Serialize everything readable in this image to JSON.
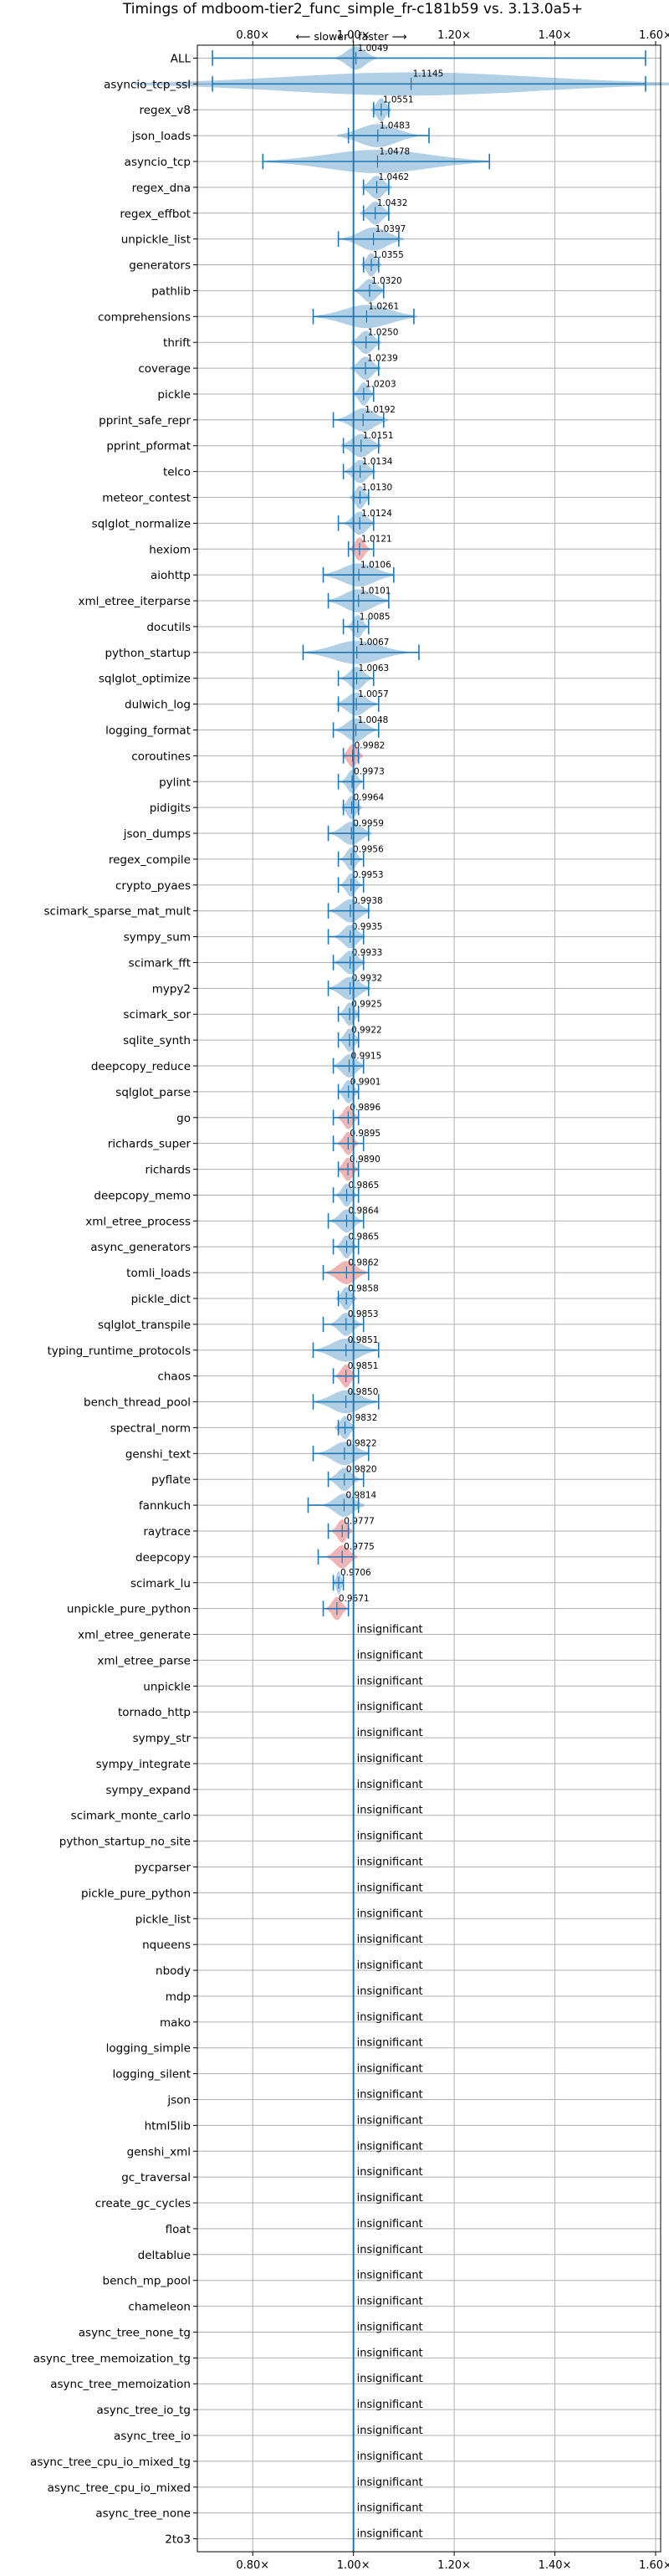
{
  "chart_data": {
    "type": "violin",
    "title": "Timings of mdboom-tier2_func_simple_fr-c181b59 vs. 3.13.0a5+",
    "subtitle": "⟵ slower | faster ⟶",
    "xlabel": "",
    "ylabel": "",
    "xlim": [
      0.69,
      1.61
    ],
    "xticks": [
      0.8,
      1.0,
      1.2,
      1.4,
      1.6
    ],
    "xtick_labels": [
      "0.80×",
      "1.00×",
      "1.20×",
      "1.40×",
      "1.60×"
    ],
    "reference_line": 1.0,
    "grid": true,
    "colors": {
      "faster": "#1f77b4",
      "slower": "#d62728",
      "line": "#1f77b4"
    },
    "insignificant_label": "insignificant",
    "benchmarks": [
      {
        "name": "ALL",
        "value": 1.0049,
        "label": "1.0049",
        "min": 0.72,
        "max": 1.58,
        "spread": 0.04,
        "slower": false
      },
      {
        "name": "asyncio_tcp_ssl",
        "value": 1.1145,
        "label": "1.1145",
        "min": 0.72,
        "max": 1.58,
        "spread": 0.55,
        "slower": false
      },
      {
        "name": "regex_v8",
        "value": 1.0551,
        "label": "1.0551",
        "min": 1.04,
        "max": 1.07,
        "spread": 0.02,
        "slower": false
      },
      {
        "name": "json_loads",
        "value": 1.0483,
        "label": "1.0483",
        "min": 0.99,
        "max": 1.15,
        "spread": 0.08,
        "slower": false
      },
      {
        "name": "asyncio_tcp",
        "value": 1.0478,
        "label": "1.0478",
        "min": 0.82,
        "max": 1.27,
        "spread": 0.22,
        "slower": false
      },
      {
        "name": "regex_dna",
        "value": 1.0462,
        "label": "1.0462",
        "min": 1.02,
        "max": 1.07,
        "spread": 0.03,
        "slower": false
      },
      {
        "name": "regex_effbot",
        "value": 1.0432,
        "label": "1.0432",
        "min": 1.02,
        "max": 1.07,
        "spread": 0.03,
        "slower": false
      },
      {
        "name": "unpickle_list",
        "value": 1.0397,
        "label": "1.0397",
        "min": 0.97,
        "max": 1.09,
        "spread": 0.06,
        "slower": false
      },
      {
        "name": "generators",
        "value": 1.0355,
        "label": "1.0355",
        "min": 1.02,
        "max": 1.05,
        "spread": 0.02,
        "slower": false
      },
      {
        "name": "pathlib",
        "value": 1.032,
        "label": "1.0320",
        "min": 1.0,
        "max": 1.06,
        "spread": 0.03,
        "slower": false
      },
      {
        "name": "comprehensions",
        "value": 1.0261,
        "label": "1.0261",
        "min": 0.92,
        "max": 1.12,
        "spread": 0.1,
        "slower": false
      },
      {
        "name": "thrift",
        "value": 1.025,
        "label": "1.0250",
        "min": 1.0,
        "max": 1.05,
        "spread": 0.03,
        "slower": false
      },
      {
        "name": "coverage",
        "value": 1.0239,
        "label": "1.0239",
        "min": 1.0,
        "max": 1.05,
        "spread": 0.03,
        "slower": false
      },
      {
        "name": "pickle",
        "value": 1.0203,
        "label": "1.0203",
        "min": 1.0,
        "max": 1.04,
        "spread": 0.02,
        "slower": false
      },
      {
        "name": "pprint_safe_repr",
        "value": 1.0192,
        "label": "1.0192",
        "min": 0.96,
        "max": 1.06,
        "spread": 0.05,
        "slower": false
      },
      {
        "name": "pprint_pformat",
        "value": 1.0151,
        "label": "1.0151",
        "min": 0.98,
        "max": 1.05,
        "spread": 0.04,
        "slower": false
      },
      {
        "name": "telco",
        "value": 1.0134,
        "label": "1.0134",
        "min": 0.98,
        "max": 1.04,
        "spread": 0.03,
        "slower": false
      },
      {
        "name": "meteor_contest",
        "value": 1.013,
        "label": "1.0130",
        "min": 1.0,
        "max": 1.03,
        "spread": 0.02,
        "slower": false
      },
      {
        "name": "sqlglot_normalize",
        "value": 1.0124,
        "label": "1.0124",
        "min": 0.97,
        "max": 1.04,
        "spread": 0.03,
        "slower": false
      },
      {
        "name": "hexiom",
        "value": 1.0121,
        "label": "1.0121",
        "min": 0.99,
        "max": 1.04,
        "spread": 0.02,
        "slower": true
      },
      {
        "name": "aiohttp",
        "value": 1.0106,
        "label": "1.0106",
        "min": 0.94,
        "max": 1.08,
        "spread": 0.07,
        "slower": false
      },
      {
        "name": "xml_etree_iterparse",
        "value": 1.0101,
        "label": "1.0101",
        "min": 0.95,
        "max": 1.07,
        "spread": 0.06,
        "slower": false
      },
      {
        "name": "docutils",
        "value": 1.0085,
        "label": "1.0085",
        "min": 0.98,
        "max": 1.03,
        "spread": 0.02,
        "slower": false
      },
      {
        "name": "python_startup",
        "value": 1.0067,
        "label": "1.0067",
        "min": 0.9,
        "max": 1.13,
        "spread": 0.1,
        "slower": false
      },
      {
        "name": "sqlglot_optimize",
        "value": 1.0063,
        "label": "1.0063",
        "min": 0.97,
        "max": 1.04,
        "spread": 0.03,
        "slower": false
      },
      {
        "name": "dulwich_log",
        "value": 1.0057,
        "label": "1.0057",
        "min": 0.97,
        "max": 1.05,
        "spread": 0.04,
        "slower": false
      },
      {
        "name": "logging_format",
        "value": 1.0048,
        "label": "1.0048",
        "min": 0.96,
        "max": 1.05,
        "spread": 0.04,
        "slower": false
      },
      {
        "name": "coroutines",
        "value": 0.9982,
        "label": "0.9982",
        "min": 0.98,
        "max": 1.01,
        "spread": 0.02,
        "slower": true
      },
      {
        "name": "pylint",
        "value": 0.9973,
        "label": "0.9973",
        "min": 0.97,
        "max": 1.02,
        "spread": 0.02,
        "slower": false
      },
      {
        "name": "pidigits",
        "value": 0.9964,
        "label": "0.9964",
        "min": 0.98,
        "max": 1.01,
        "spread": 0.02,
        "slower": false
      },
      {
        "name": "json_dumps",
        "value": 0.9959,
        "label": "0.9959",
        "min": 0.95,
        "max": 1.03,
        "spread": 0.04,
        "slower": false
      },
      {
        "name": "regex_compile",
        "value": 0.9956,
        "label": "0.9956",
        "min": 0.97,
        "max": 1.02,
        "spread": 0.02,
        "slower": false
      },
      {
        "name": "crypto_pyaes",
        "value": 0.9953,
        "label": "0.9953",
        "min": 0.97,
        "max": 1.02,
        "spread": 0.02,
        "slower": false
      },
      {
        "name": "scimark_sparse_mat_mult",
        "value": 0.9938,
        "label": "0.9938",
        "min": 0.95,
        "max": 1.03,
        "spread": 0.04,
        "slower": false
      },
      {
        "name": "sympy_sum",
        "value": 0.9935,
        "label": "0.9935",
        "min": 0.95,
        "max": 1.02,
        "spread": 0.03,
        "slower": false
      },
      {
        "name": "scimark_fft",
        "value": 0.9933,
        "label": "0.9933",
        "min": 0.96,
        "max": 1.02,
        "spread": 0.03,
        "slower": false
      },
      {
        "name": "mypy2",
        "value": 0.9932,
        "label": "0.9932",
        "min": 0.95,
        "max": 1.03,
        "spread": 0.04,
        "slower": false
      },
      {
        "name": "scimark_sor",
        "value": 0.9925,
        "label": "0.9925",
        "min": 0.97,
        "max": 1.01,
        "spread": 0.02,
        "slower": false
      },
      {
        "name": "sqlite_synth",
        "value": 0.9922,
        "label": "0.9922",
        "min": 0.97,
        "max": 1.01,
        "spread": 0.02,
        "slower": false
      },
      {
        "name": "deepcopy_reduce",
        "value": 0.9915,
        "label": "0.9915",
        "min": 0.96,
        "max": 1.02,
        "spread": 0.03,
        "slower": false
      },
      {
        "name": "sqlglot_parse",
        "value": 0.9901,
        "label": "0.9901",
        "min": 0.97,
        "max": 1.01,
        "spread": 0.02,
        "slower": false
      },
      {
        "name": "go",
        "value": 0.9896,
        "label": "0.9896",
        "min": 0.96,
        "max": 1.01,
        "spread": 0.02,
        "slower": true
      },
      {
        "name": "richards_super",
        "value": 0.9895,
        "label": "0.9895",
        "min": 0.96,
        "max": 1.02,
        "spread": 0.02,
        "slower": true
      },
      {
        "name": "richards",
        "value": 0.989,
        "label": "0.9890",
        "min": 0.97,
        "max": 1.01,
        "spread": 0.02,
        "slower": true
      },
      {
        "name": "deepcopy_memo",
        "value": 0.9865,
        "label": "0.9865",
        "min": 0.96,
        "max": 1.01,
        "spread": 0.02,
        "slower": false
      },
      {
        "name": "xml_etree_process",
        "value": 0.9864,
        "label": "0.9864",
        "min": 0.95,
        "max": 1.02,
        "spread": 0.03,
        "slower": false
      },
      {
        "name": "async_generators",
        "value": 0.9865,
        "label": "0.9865",
        "min": 0.96,
        "max": 1.01,
        "spread": 0.02,
        "slower": false
      },
      {
        "name": "tomli_loads",
        "value": 0.9862,
        "label": "0.9862",
        "min": 0.94,
        "max": 1.03,
        "spread": 0.04,
        "slower": true
      },
      {
        "name": "pickle_dict",
        "value": 0.9858,
        "label": "0.9858",
        "min": 0.97,
        "max": 1.0,
        "spread": 0.02,
        "slower": false
      },
      {
        "name": "sqlglot_transpile",
        "value": 0.9853,
        "label": "0.9853",
        "min": 0.94,
        "max": 1.02,
        "spread": 0.03,
        "slower": false
      },
      {
        "name": "typing_runtime_protocols",
        "value": 0.9851,
        "label": "0.9851",
        "min": 0.92,
        "max": 1.05,
        "spread": 0.06,
        "slower": false
      },
      {
        "name": "chaos",
        "value": 0.9851,
        "label": "0.9851",
        "min": 0.96,
        "max": 1.01,
        "spread": 0.02,
        "slower": true
      },
      {
        "name": "bench_thread_pool",
        "value": 0.985,
        "label": "0.9850",
        "min": 0.92,
        "max": 1.05,
        "spread": 0.06,
        "slower": false
      },
      {
        "name": "spectral_norm",
        "value": 0.9832,
        "label": "0.9832",
        "min": 0.97,
        "max": 1.0,
        "spread": 0.02,
        "slower": false
      },
      {
        "name": "genshi_text",
        "value": 0.9822,
        "label": "0.9822",
        "min": 0.92,
        "max": 1.03,
        "spread": 0.05,
        "slower": false
      },
      {
        "name": "pyflate",
        "value": 0.982,
        "label": "0.9820",
        "min": 0.95,
        "max": 1.02,
        "spread": 0.03,
        "slower": false
      },
      {
        "name": "fannkuch",
        "value": 0.9814,
        "label": "0.9814",
        "min": 0.91,
        "max": 1.01,
        "spread": 0.04,
        "slower": false
      },
      {
        "name": "raytrace",
        "value": 0.9777,
        "label": "0.9777",
        "min": 0.95,
        "max": 0.99,
        "spread": 0.02,
        "slower": true
      },
      {
        "name": "deepcopy",
        "value": 0.9775,
        "label": "0.9775",
        "min": 0.93,
        "max": 1.0,
        "spread": 0.03,
        "slower": true
      },
      {
        "name": "scimark_lu",
        "value": 0.9706,
        "label": "0.9706",
        "min": 0.96,
        "max": 0.98,
        "spread": 0.01,
        "slower": false
      },
      {
        "name": "unpickle_pure_python",
        "value": 0.9671,
        "label": "0.9671",
        "min": 0.94,
        "max": 0.99,
        "spread": 0.02,
        "slower": true
      },
      {
        "name": "xml_etree_generate",
        "insignificant": true
      },
      {
        "name": "xml_etree_parse",
        "insignificant": true
      },
      {
        "name": "unpickle",
        "insignificant": true
      },
      {
        "name": "tornado_http",
        "insignificant": true
      },
      {
        "name": "sympy_str",
        "insignificant": true
      },
      {
        "name": "sympy_integrate",
        "insignificant": true
      },
      {
        "name": "sympy_expand",
        "insignificant": true
      },
      {
        "name": "scimark_monte_carlo",
        "insignificant": true
      },
      {
        "name": "python_startup_no_site",
        "insignificant": true
      },
      {
        "name": "pycparser",
        "insignificant": true
      },
      {
        "name": "pickle_pure_python",
        "insignificant": true
      },
      {
        "name": "pickle_list",
        "insignificant": true
      },
      {
        "name": "nqueens",
        "insignificant": true
      },
      {
        "name": "nbody",
        "insignificant": true
      },
      {
        "name": "mdp",
        "insignificant": true
      },
      {
        "name": "mako",
        "insignificant": true
      },
      {
        "name": "logging_simple",
        "insignificant": true
      },
      {
        "name": "logging_silent",
        "insignificant": true
      },
      {
        "name": "json",
        "insignificant": true
      },
      {
        "name": "html5lib",
        "insignificant": true
      },
      {
        "name": "genshi_xml",
        "insignificant": true
      },
      {
        "name": "gc_traversal",
        "insignificant": true
      },
      {
        "name": "create_gc_cycles",
        "insignificant": true
      },
      {
        "name": "float",
        "insignificant": true
      },
      {
        "name": "deltablue",
        "insignificant": true
      },
      {
        "name": "bench_mp_pool",
        "insignificant": true
      },
      {
        "name": "chameleon",
        "insignificant": true
      },
      {
        "name": "async_tree_none_tg",
        "insignificant": true
      },
      {
        "name": "async_tree_memoization_tg",
        "insignificant": true
      },
      {
        "name": "async_tree_memoization",
        "insignificant": true
      },
      {
        "name": "async_tree_io_tg",
        "insignificant": true
      },
      {
        "name": "async_tree_io",
        "insignificant": true
      },
      {
        "name": "async_tree_cpu_io_mixed_tg",
        "insignificant": true
      },
      {
        "name": "async_tree_cpu_io_mixed",
        "insignificant": true
      },
      {
        "name": "async_tree_none",
        "insignificant": true
      },
      {
        "name": "2to3",
        "insignificant": true
      }
    ]
  }
}
